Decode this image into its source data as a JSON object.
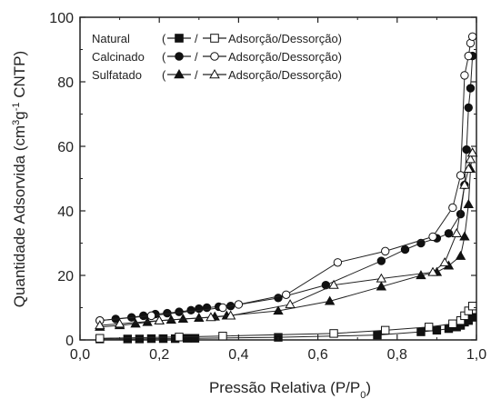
{
  "chart_data": {
    "type": "scatter",
    "title": "",
    "xlabel": "Pressão Relativa (P/P",
    "xlabel_sub": "0",
    "xlabel_close": ")",
    "ylabel": "Quantidade Adsorvida (cm",
    "ylabel_sup1": "3",
    "ylabel_mid": "g",
    "ylabel_sup2": "-1",
    "ylabel_end": " CNTP)",
    "xlim": [
      0.0,
      1.0
    ],
    "ylim": [
      0,
      100
    ],
    "x_ticks": [
      "0,0",
      "0,2",
      "0,4",
      "0,6",
      "0,8",
      "1,0"
    ],
    "y_ticks": [
      "0",
      "20",
      "40",
      "60",
      "80",
      "100"
    ],
    "legend_position": "top-left",
    "legend": [
      {
        "name": "Natural",
        "sep": "/",
        "text": "Adsorção/Dessorção",
        "marker": "square"
      },
      {
        "name": "Calcinado",
        "sep": "/",
        "text": "Adsorção/Dessorção",
        "marker": "circle"
      },
      {
        "name": "Sulfatado",
        "sep": "/",
        "text": "Adsorção/Dessorção",
        "marker": "triangle"
      }
    ],
    "series": [
      {
        "name": "Natural",
        "branch": "Adsorção",
        "marker": "square",
        "filled": true,
        "x": [
          0.05,
          0.12,
          0.15,
          0.18,
          0.21,
          0.24,
          0.27,
          0.29,
          0.5,
          0.75,
          0.86,
          0.9,
          0.93,
          0.95,
          0.96,
          0.97,
          0.98,
          0.99
        ],
        "y": [
          0.3,
          0.3,
          0.3,
          0.4,
          0.4,
          0.4,
          0.5,
          0.5,
          0.8,
          1.5,
          2.5,
          3,
          3.5,
          4,
          4.5,
          5.5,
          6,
          7
        ]
      },
      {
        "name": "Natural",
        "branch": "Dessorção",
        "marker": "square",
        "filled": false,
        "x": [
          0.05,
          0.25,
          0.36,
          0.64,
          0.77,
          0.88,
          0.94,
          0.96,
          0.97,
          0.98,
          0.99
        ],
        "y": [
          0.5,
          0.9,
          1.2,
          2,
          3,
          4,
          5,
          6,
          7.5,
          9,
          10.5
        ]
      },
      {
        "name": "Calcinado",
        "branch": "Adsorção",
        "marker": "circle",
        "filled": true,
        "x": [
          0.05,
          0.09,
          0.13,
          0.16,
          0.19,
          0.22,
          0.25,
          0.28,
          0.3,
          0.32,
          0.35,
          0.38,
          0.5,
          0.62,
          0.76,
          0.82,
          0.86,
          0.9,
          0.93,
          0.96,
          0.97,
          0.975,
          0.98,
          0.985,
          0.99
        ],
        "y": [
          6,
          6.5,
          7,
          7.5,
          8,
          8.3,
          8.7,
          9.2,
          9.7,
          10,
          10.3,
          10.5,
          13,
          17,
          24.5,
          28,
          30,
          31.5,
          33,
          39,
          48,
          59,
          72,
          78,
          88
        ]
      },
      {
        "name": "Calcinado",
        "branch": "Dessorção",
        "marker": "circle",
        "filled": false,
        "x": [
          0.05,
          0.18,
          0.36,
          0.4,
          0.52,
          0.65,
          0.77,
          0.89,
          0.94,
          0.96,
          0.97,
          0.98,
          0.985,
          0.99
        ],
        "y": [
          6,
          7.5,
          10,
          11,
          14,
          24,
          27.5,
          32,
          41,
          51,
          82,
          88,
          92,
          94
        ]
      },
      {
        "name": "Sulfatado",
        "branch": "Adsorção",
        "marker": "triangle",
        "filled": true,
        "x": [
          0.05,
          0.1,
          0.14,
          0.17,
          0.2,
          0.23,
          0.26,
          0.3,
          0.34,
          0.37,
          0.5,
          0.63,
          0.76,
          0.86,
          0.9,
          0.93,
          0.96,
          0.97,
          0.98,
          0.985,
          0.99
        ],
        "y": [
          4,
          4.5,
          5,
          5.5,
          6,
          6.2,
          6.5,
          6.8,
          7.2,
          7.5,
          9,
          12,
          16.5,
          20,
          21,
          23,
          26,
          32,
          42,
          53,
          58
        ]
      },
      {
        "name": "Sulfatado",
        "branch": "Dessorção",
        "marker": "triangle",
        "filled": false,
        "x": [
          0.05,
          0.1,
          0.2,
          0.33,
          0.38,
          0.53,
          0.64,
          0.76,
          0.89,
          0.92,
          0.95,
          0.97,
          0.98,
          0.985,
          0.99
        ],
        "y": [
          4.5,
          5,
          6,
          7,
          7.5,
          11,
          17,
          19,
          21,
          24,
          33,
          48,
          53,
          56,
          58
        ]
      }
    ]
  }
}
